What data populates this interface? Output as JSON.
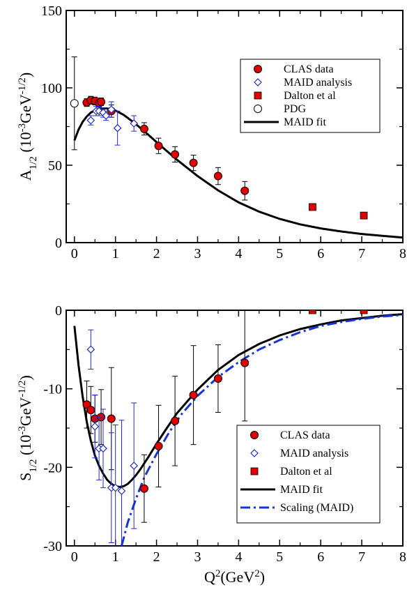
{
  "colors": {
    "clas": "#e00000",
    "maid_analysis": "#1f2ad0",
    "dalton": "#e00000",
    "pdg": "#000000",
    "maid_fit": "#000000",
    "scaling": "#1633d6"
  },
  "chart_data": [
    {
      "type": "scatter",
      "ylabel_main": "A",
      "ylabel_sub": "1/2",
      "ylabel_unit": "(10",
      "ylabel_exp1": "-3",
      "ylabel_mid": "GeV",
      "ylabel_exp2": "-1/2",
      "ylabel_close": ")",
      "xlim": [
        -0.2,
        8
      ],
      "ylim": [
        0,
        150
      ],
      "x_ticks": [
        "0",
        "1",
        "2",
        "3",
        "4",
        "5",
        "6",
        "7",
        "8"
      ],
      "y_ticks": [
        "0",
        "50",
        "100",
        "150"
      ],
      "legend_position": "top-right",
      "legend": [
        "CLAS data",
        "MAID analysis",
        "Dalton et al",
        "PDG",
        "MAID fit"
      ],
      "series": [
        {
          "name": "CLAS data",
          "marker": "filled-circle",
          "x": [
            0.3,
            0.4,
            0.5,
            0.6,
            0.65,
            0.9,
            1.7,
            2.05,
            2.45,
            2.9,
            3.5,
            4.15
          ],
          "y": [
            90.5,
            92,
            91.5,
            90,
            91,
            85,
            73.5,
            62.5,
            57,
            51.5,
            43,
            33.5
          ],
          "err": [
            2.5,
            2.5,
            2.5,
            2.5,
            2.5,
            4,
            4,
            5,
            5,
            5,
            5.5,
            6
          ]
        },
        {
          "name": "MAID analysis",
          "marker": "open-diamond",
          "x": [
            0.4,
            0.53,
            0.6,
            0.7,
            0.77,
            0.9,
            1.05,
            1.45
          ],
          "y": [
            79,
            85,
            85,
            84,
            82,
            86,
            74,
            77
          ],
          "err": [
            3,
            3,
            3,
            3,
            3,
            5,
            11,
            5
          ]
        },
        {
          "name": "Dalton et al",
          "marker": "filled-square",
          "x": [
            5.8,
            7.05
          ],
          "y": [
            23,
            17.5
          ]
        },
        {
          "name": "PDG",
          "marker": "open-circle",
          "x": [
            0.0
          ],
          "y": [
            90
          ],
          "err": [
            30
          ]
        },
        {
          "name": "MAID fit",
          "type": "line",
          "x": [
            0,
            0.1,
            0.2,
            0.3,
            0.4,
            0.5,
            0.6,
            0.7,
            0.8,
            0.9,
            1.0,
            1.2,
            1.4,
            1.6,
            1.8,
            2.0,
            2.5,
            3.0,
            3.5,
            4.0,
            4.5,
            5.0,
            5.5,
            6.0,
            6.5,
            7.0,
            7.5,
            8.0
          ],
          "y": [
            66,
            73,
            78,
            81.5,
            84,
            85.5,
            86.3,
            86.7,
            86.6,
            86.2,
            85.3,
            82.5,
            78.6,
            74.3,
            69.7,
            64.9,
            53.5,
            43,
            33.8,
            26,
            20,
            15.3,
            11.8,
            9.2,
            7.2,
            5.6,
            4.4,
            3.3
          ]
        }
      ]
    },
    {
      "type": "scatter",
      "xlabel_main": "Q",
      "xlabel_exp": "2",
      "xlabel_unit": "(GeV",
      "xlabel_unit_exp": "2",
      "xlabel_close": ")",
      "ylabel_main": "S",
      "ylabel_sub": "1/2",
      "ylabel_unit": "(10",
      "ylabel_exp1": "-3",
      "ylabel_mid": "GeV",
      "ylabel_exp2": "-1/2",
      "ylabel_close": ")",
      "xlim": [
        -0.2,
        8
      ],
      "ylim": [
        -30,
        0
      ],
      "x_ticks": [
        "0",
        "1",
        "2",
        "3",
        "4",
        "5",
        "6",
        "7",
        "8"
      ],
      "y_ticks": [
        "0",
        "-10",
        "-20",
        "-30"
      ],
      "legend_position": "bottom-right",
      "legend": [
        "CLAS data",
        "MAID analysis",
        "Dalton et al",
        "MAID fit",
        "Scaling (MAID)"
      ],
      "series": [
        {
          "name": "CLAS data",
          "marker": "filled-circle",
          "x": [
            0.3,
            0.4,
            0.5,
            0.65,
            0.9,
            1.7,
            2.05,
            2.45,
            2.9,
            3.5,
            4.15
          ],
          "y": [
            -12,
            -12.7,
            -13.8,
            -13.6,
            -13.8,
            -22.7,
            -17.3,
            -14.1,
            -10.8,
            -8.7,
            -6.7
          ],
          "err": [
            3,
            3,
            3,
            3.5,
            6.5,
            4.3,
            5.2,
            5.7,
            6.3,
            4.3,
            7.4
          ]
        },
        {
          "name": "MAID analysis",
          "marker": "open-diamond",
          "x": [
            0.4,
            0.5,
            0.6,
            0.7,
            0.9,
            1.0,
            1.15,
            1.45
          ],
          "y": [
            -5,
            -14.8,
            -17.6,
            -17.6,
            -22.6,
            -22.6,
            -23.0,
            -19.8
          ],
          "err": [
            2.5,
            4,
            4,
            5,
            7,
            8,
            9,
            8
          ]
        },
        {
          "name": "Dalton et al",
          "marker": "filled-square",
          "x": [
            5.8,
            7.05
          ],
          "y": [
            0,
            0
          ]
        },
        {
          "name": "MAID fit",
          "type": "line",
          "x": [
            0.0,
            0.1,
            0.2,
            0.3,
            0.4,
            0.5,
            0.6,
            0.7,
            0.8,
            0.9,
            1.0,
            1.1,
            1.2,
            1.3,
            1.4,
            1.5,
            1.6,
            1.7,
            1.8,
            2.0,
            2.2,
            2.5,
            3.0,
            3.5,
            4.0,
            4.5,
            5.0,
            5.5,
            6.0,
            6.5,
            7.0,
            7.5,
            8.0
          ],
          "y": [
            -2,
            -7,
            -11,
            -14.2,
            -16.6,
            -18.5,
            -19.8,
            -20.8,
            -21.6,
            -22.1,
            -22.4,
            -22.5,
            -22.4,
            -22.1,
            -21.6,
            -21.0,
            -20.3,
            -19.5,
            -18.7,
            -17.0,
            -15.4,
            -13.1,
            -10.1,
            -7.6,
            -5.7,
            -4.3,
            -3.2,
            -2.4,
            -1.8,
            -1.3,
            -1.0,
            -0.7,
            -0.5
          ]
        },
        {
          "name": "Scaling (MAID)",
          "type": "line",
          "dash": "dash-dot",
          "x": [
            1.15,
            1.3,
            1.5,
            1.7,
            2.0,
            2.3,
            2.6,
            3.0,
            3.5,
            4.0,
            4.5,
            5.0,
            5.5,
            6.0,
            6.5,
            7.0,
            7.5,
            8.0
          ],
          "y": [
            -30,
            -27,
            -24,
            -21.3,
            -18.3,
            -15.6,
            -13.3,
            -10.9,
            -8.5,
            -6.6,
            -5.0,
            -3.8,
            -2.8,
            -2.0,
            -1.5,
            -1.1,
            -0.8,
            -0.6
          ]
        }
      ]
    }
  ]
}
